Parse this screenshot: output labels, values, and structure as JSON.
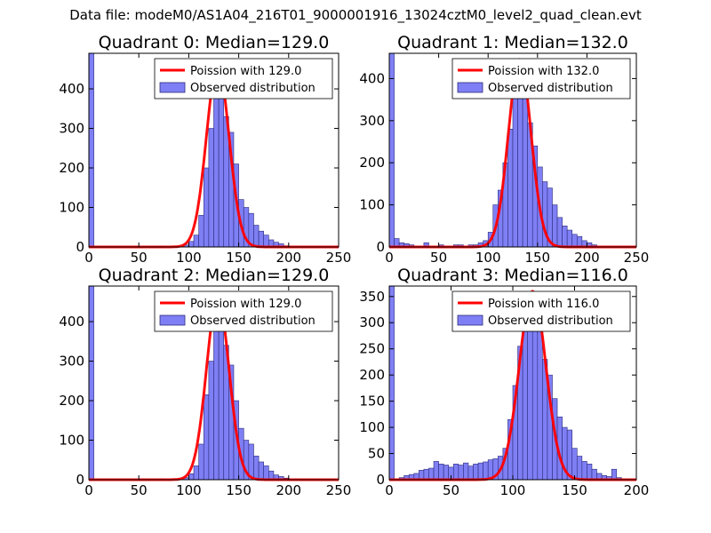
{
  "suptitle": "Data file: modeM0/AS1A04_216T01_9000001916_13024cztM0_level2_quad_clean.evt",
  "colors": {
    "bar_fill": "#7f7ff5",
    "bar_edge": "#2b2b7a",
    "poisson_line": "#ff0000",
    "axis": "#000000"
  },
  "chart_data": [
    {
      "type": "bar",
      "title": "Quadrant 0: Median=129.0",
      "xlim": [
        0,
        250
      ],
      "ylim": [
        0,
        490
      ],
      "xticks": [
        "0",
        "50",
        "100",
        "150",
        "200",
        "250"
      ],
      "yticks": [
        "0",
        "100",
        "200",
        "300",
        "400"
      ],
      "xtick_values": [
        0,
        50,
        100,
        150,
        200,
        250
      ],
      "ytick_values": [
        0,
        100,
        200,
        300,
        400
      ],
      "bin_width": 5,
      "bins": [
        [
          0,
          490
        ],
        [
          70,
          2
        ],
        [
          95,
          5
        ],
        [
          100,
          14
        ],
        [
          105,
          30
        ],
        [
          110,
          80
        ],
        [
          115,
          200
        ],
        [
          120,
          300
        ],
        [
          125,
          420
        ],
        [
          130,
          440
        ],
        [
          135,
          330
        ],
        [
          140,
          290
        ],
        [
          145,
          210
        ],
        [
          150,
          120
        ],
        [
          155,
          100
        ],
        [
          160,
          85
        ],
        [
          165,
          55
        ],
        [
          170,
          40
        ],
        [
          175,
          30
        ],
        [
          180,
          18
        ],
        [
          185,
          12
        ],
        [
          190,
          8
        ],
        [
          195,
          3
        ]
      ],
      "poisson_mean": 129.0,
      "poisson_peak": 460,
      "legend": {
        "line_label": "Poission with 129.0",
        "bar_label": "Observed distribution",
        "loc": "upper right"
      }
    },
    {
      "type": "bar",
      "title": "Quadrant 1: Median=132.0",
      "xlim": [
        0,
        250
      ],
      "ylim": [
        0,
        460
      ],
      "xticks": [
        "0",
        "50",
        "100",
        "150",
        "200",
        "250"
      ],
      "yticks": [
        "0",
        "100",
        "200",
        "300",
        "400"
      ],
      "xtick_values": [
        0,
        50,
        100,
        150,
        200,
        250
      ],
      "ytick_values": [
        0,
        100,
        200,
        300,
        400
      ],
      "bin_width": 5,
      "bins": [
        [
          0,
          460
        ],
        [
          5,
          20
        ],
        [
          10,
          10
        ],
        [
          15,
          8
        ],
        [
          20,
          5
        ],
        [
          35,
          10
        ],
        [
          50,
          5
        ],
        [
          65,
          5
        ],
        [
          70,
          5
        ],
        [
          80,
          5
        ],
        [
          85,
          5
        ],
        [
          90,
          10
        ],
        [
          95,
          15
        ],
        [
          100,
          35
        ],
        [
          105,
          100
        ],
        [
          110,
          135
        ],
        [
          115,
          200
        ],
        [
          120,
          280
        ],
        [
          125,
          360
        ],
        [
          130,
          425
        ],
        [
          135,
          370
        ],
        [
          140,
          295
        ],
        [
          145,
          240
        ],
        [
          150,
          190
        ],
        [
          155,
          155
        ],
        [
          160,
          140
        ],
        [
          165,
          100
        ],
        [
          170,
          70
        ],
        [
          175,
          50
        ],
        [
          180,
          40
        ],
        [
          185,
          30
        ],
        [
          190,
          25
        ],
        [
          195,
          15
        ],
        [
          200,
          10
        ],
        [
          205,
          5
        ]
      ],
      "poisson_mean": 132.0,
      "poisson_peak": 445,
      "legend": {
        "line_label": "Poission with 132.0",
        "bar_label": "Observed distribution",
        "loc": "upper right"
      }
    },
    {
      "type": "bar",
      "title": "Quadrant 2: Median=129.0",
      "xlim": [
        0,
        250
      ],
      "ylim": [
        0,
        490
      ],
      "xticks": [
        "0",
        "50",
        "100",
        "150",
        "200",
        "250"
      ],
      "yticks": [
        "0",
        "100",
        "200",
        "300",
        "400"
      ],
      "xtick_values": [
        0,
        50,
        100,
        150,
        200,
        250
      ],
      "ytick_values": [
        0,
        100,
        200,
        300,
        400
      ],
      "bin_width": 5,
      "bins": [
        [
          0,
          490
        ],
        [
          70,
          2
        ],
        [
          95,
          5
        ],
        [
          100,
          15
        ],
        [
          105,
          35
        ],
        [
          110,
          90
        ],
        [
          115,
          215
        ],
        [
          120,
          300
        ],
        [
          125,
          410
        ],
        [
          130,
          435
        ],
        [
          135,
          340
        ],
        [
          140,
          290
        ],
        [
          145,
          200
        ],
        [
          150,
          130
        ],
        [
          155,
          100
        ],
        [
          160,
          90
        ],
        [
          165,
          60
        ],
        [
          170,
          45
        ],
        [
          175,
          35
        ],
        [
          180,
          22
        ],
        [
          185,
          12
        ],
        [
          190,
          8
        ],
        [
          195,
          4
        ]
      ],
      "poisson_mean": 129.0,
      "poisson_peak": 460,
      "legend": {
        "line_label": "Poission with 129.0",
        "bar_label": "Observed distribution",
        "loc": "upper right"
      }
    },
    {
      "type": "bar",
      "title": "Quadrant 3: Median=116.0",
      "xlim": [
        0,
        200
      ],
      "ylim": [
        0,
        370
      ],
      "xticks": [
        "0",
        "50",
        "100",
        "150",
        "200"
      ],
      "yticks": [
        "0",
        "50",
        "100",
        "150",
        "200",
        "250",
        "300",
        "350"
      ],
      "xtick_values": [
        0,
        50,
        100,
        150,
        200
      ],
      "ytick_values": [
        0,
        50,
        100,
        150,
        200,
        250,
        300,
        350
      ],
      "bin_width": 4,
      "bins": [
        [
          0,
          370
        ],
        [
          8,
          4
        ],
        [
          12,
          8
        ],
        [
          16,
          10
        ],
        [
          20,
          12
        ],
        [
          24,
          18
        ],
        [
          28,
          20
        ],
        [
          32,
          22
        ],
        [
          36,
          35
        ],
        [
          40,
          30
        ],
        [
          44,
          28
        ],
        [
          48,
          24
        ],
        [
          52,
          30
        ],
        [
          56,
          28
        ],
        [
          60,
          32
        ],
        [
          64,
          26
        ],
        [
          68,
          30
        ],
        [
          72,
          32
        ],
        [
          76,
          34
        ],
        [
          80,
          38
        ],
        [
          84,
          40
        ],
        [
          88,
          45
        ],
        [
          92,
          60
        ],
        [
          96,
          115
        ],
        [
          100,
          180
        ],
        [
          104,
          255
        ],
        [
          108,
          300
        ],
        [
          112,
          330
        ],
        [
          116,
          350
        ],
        [
          120,
          300
        ],
        [
          124,
          230
        ],
        [
          128,
          200
        ],
        [
          132,
          155
        ],
        [
          136,
          120
        ],
        [
          140,
          100
        ],
        [
          144,
          95
        ],
        [
          148,
          60
        ],
        [
          152,
          45
        ],
        [
          156,
          35
        ],
        [
          160,
          30
        ],
        [
          164,
          20
        ],
        [
          168,
          12
        ],
        [
          172,
          8
        ],
        [
          176,
          6
        ],
        [
          180,
          20
        ],
        [
          184,
          4
        ]
      ],
      "poisson_mean": 116.0,
      "poisson_peak": 360,
      "legend": {
        "line_label": "Poission with 116.0",
        "bar_label": "Observed distribution",
        "loc": "upper right"
      }
    }
  ]
}
